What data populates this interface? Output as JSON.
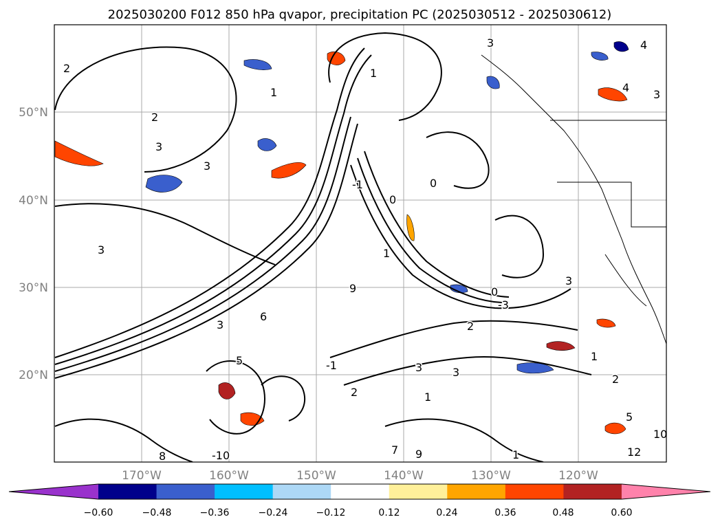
{
  "title": "2025030200 F012 850 hPa qvapor, precipitation PC (2025030512 - 2025030612)",
  "map": {
    "lon_labels": [
      "170°W",
      "160°W",
      "150°W",
      "140°W",
      "130°W",
      "120°W"
    ],
    "lat_labels": [
      "50°N",
      "40°N",
      "30°N",
      "20°N"
    ],
    "gridlines": true,
    "contour_labels": [
      "2",
      "1",
      "2",
      "3",
      "3",
      "3",
      "1",
      "0",
      "1",
      "-1",
      "9",
      "0",
      "3",
      "4",
      "4",
      "3",
      "-3",
      "1",
      "2",
      "0",
      "3",
      "6",
      "5",
      "3",
      "-1",
      "3",
      "1",
      "2",
      "1",
      "3",
      "2",
      "5",
      "10",
      "12",
      "-10",
      "8",
      "7",
      "9"
    ]
  },
  "colorbar": {
    "ticks": [
      "−0.60",
      "−0.48",
      "−0.36",
      "−0.24",
      "−0.12",
      "0.12",
      "0.24",
      "0.36",
      "0.48",
      "0.60"
    ],
    "colors": [
      "#9932cc",
      "#00008b",
      "#3a5fcd",
      "#00bfff",
      "#add8f6",
      "#ffffff",
      "#fff09a",
      "#ffa500",
      "#ff4500",
      "#b22222",
      "#ff82ab"
    ],
    "extend": "both"
  }
}
